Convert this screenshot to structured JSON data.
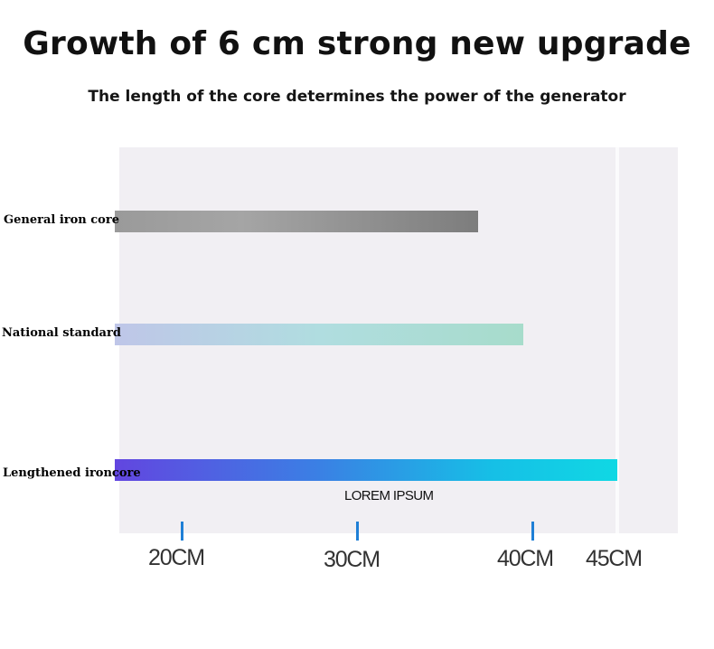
{
  "header": {
    "title": "Growth of 6 cm strong new upgrade",
    "subtitle": "The length of the core determines the power of the generator"
  },
  "chart_data": {
    "type": "bar",
    "orientation": "horizontal",
    "title": "Growth of 6 cm strong new upgrade",
    "subtitle": "The length of the core determines the power of the generator",
    "categories": [
      "General iron core",
      "National standard",
      "Lengthened ironcore"
    ],
    "values": [
      36.9,
      39.5,
      45
    ],
    "unit": "CM",
    "xlabel": "",
    "ylabel": "",
    "xticks": [
      20,
      30,
      40,
      45
    ],
    "xtick_labels": [
      "20CM",
      "30CM",
      "40CM",
      "45CM"
    ],
    "annotation": "LOREM IPSUM",
    "grid": false,
    "legend": "none",
    "colors": {
      "plot_background": "#f1eff3",
      "tick_color": "#1f7fd6",
      "General iron core": "#8e8e8e",
      "National standard": "#b0dde0",
      "Lengthened ironcore": "#2aa6e6"
    }
  }
}
